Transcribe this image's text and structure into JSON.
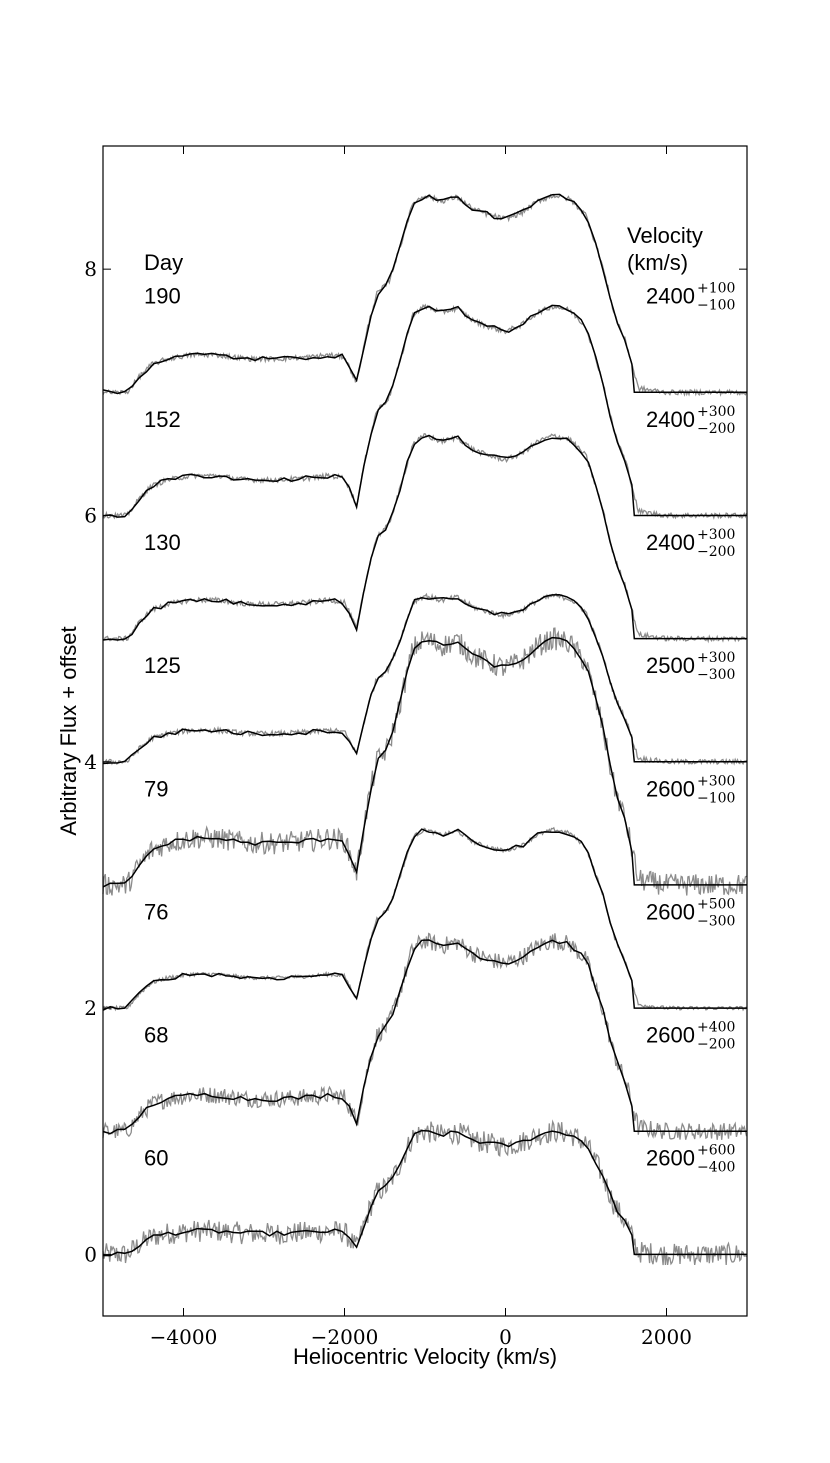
{
  "chart_data": {
    "type": "line",
    "xlabel": "Heliocentric Velocity (km/s)",
    "ylabel": "Arbitrary Flux + offset",
    "xlim": [
      -5000,
      3000
    ],
    "ylim": [
      -0.5,
      9.0
    ],
    "xticks": [
      -4000,
      -2000,
      0,
      2000
    ],
    "xtick_labels": [
      "−4000",
      "−2000",
      "0",
      "2000"
    ],
    "yticks": [
      0,
      2,
      4,
      6,
      8
    ],
    "ytick_labels": [
      "0",
      "2",
      "4",
      "6",
      "8"
    ],
    "left_header": "Day",
    "right_header_line1": "Velocity",
    "right_header_line2": "(km/s)",
    "colors": {
      "model": "#000000",
      "observed": "#8c8c8c"
    },
    "profile_shape": {
      "x": [
        -5000,
        -4700,
        -4550,
        -4400,
        -4200,
        -3900,
        -3600,
        -3200,
        -2800,
        -2400,
        -2200,
        -2000,
        -1850,
        -1700,
        -1600,
        -1450,
        -1300,
        -1150,
        -1000,
        -800,
        -600,
        -400,
        -200,
        0,
        200,
        400,
        600,
        800,
        1000,
        1200,
        1350,
        1500,
        1650,
        2000,
        3000
      ],
      "y": [
        0,
        0,
        0.08,
        0.14,
        0.17,
        0.19,
        0.19,
        0.17,
        0.17,
        0.18,
        0.19,
        0.18,
        0.05,
        0.35,
        0.5,
        0.56,
        0.75,
        0.96,
        1.0,
        0.97,
        0.99,
        0.93,
        0.9,
        0.88,
        0.91,
        0.97,
        1.0,
        0.98,
        0.9,
        0.65,
        0.4,
        0.25,
        0.02,
        0,
        0
      ]
    },
    "series": [
      {
        "day": "60",
        "offset": 0.0,
        "amp": 1.0,
        "noise": 0.09,
        "velocity": "2600",
        "err_up": "+600",
        "err_down": "−400"
      },
      {
        "day": "68",
        "offset": 1.0,
        "amp": 1.55,
        "noise": 0.07,
        "velocity": "2600",
        "err_up": "+400",
        "err_down": "−200"
      },
      {
        "day": "76",
        "offset": 2.0,
        "amp": 1.45,
        "noise": 0.015,
        "velocity": "2600",
        "err_up": "+500",
        "err_down": "−300"
      },
      {
        "day": "79",
        "offset": 3.0,
        "amp": 2.0,
        "noise": 0.09,
        "velocity": "2600",
        "err_up": "+300",
        "err_down": "−100"
      },
      {
        "day": "125",
        "offset": 4.0,
        "amp": 1.35,
        "noise": 0.02,
        "velocity": "2500",
        "err_up": "+300",
        "err_down": "−300"
      },
      {
        "day": "130",
        "offset": 5.0,
        "amp": 1.65,
        "noise": 0.02,
        "velocity": "2400",
        "err_up": "+300",
        "err_down": "−200"
      },
      {
        "day": "152",
        "offset": 6.0,
        "amp": 1.7,
        "noise": 0.02,
        "velocity": "2400",
        "err_up": "+300",
        "err_down": "−200"
      },
      {
        "day": "190",
        "offset": 7.0,
        "amp": 1.6,
        "noise": 0.02,
        "velocity": "2400",
        "err_up": "+100",
        "err_down": "−100"
      }
    ]
  }
}
